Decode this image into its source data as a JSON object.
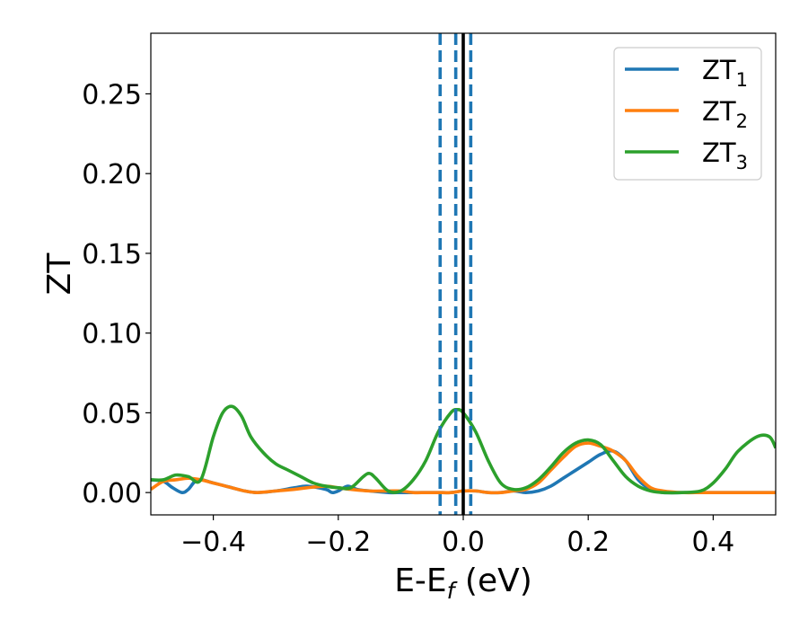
{
  "chart_data": {
    "type": "line",
    "xlabel": {
      "base": "E-E",
      "sub": "f",
      "suffix": " (eV)"
    },
    "ylabel": "ZT",
    "xlim": [
      -0.5,
      0.5
    ],
    "ylim": [
      -0.014,
      0.288
    ],
    "x_ticks": [
      -0.4,
      -0.2,
      0.0,
      0.2,
      0.4
    ],
    "x_tick_labels": [
      "−0.4",
      "−0.2",
      "0.0",
      "0.2",
      "0.4"
    ],
    "y_ticks": [
      0.0,
      0.05,
      0.1,
      0.15,
      0.2,
      0.25
    ],
    "y_tick_labels": [
      "0.00",
      "0.05",
      "0.10",
      "0.15",
      "0.20",
      "0.25"
    ],
    "grid": false,
    "legend_position": "top-right",
    "series": [
      {
        "name": "ZT",
        "sub": "1",
        "color": "#1f77b4",
        "x": [
          -0.5,
          -0.48,
          -0.465,
          -0.45,
          -0.44,
          -0.425,
          -0.4,
          -0.37,
          -0.35,
          -0.33,
          -0.3,
          -0.27,
          -0.25,
          -0.22,
          -0.21,
          -0.2,
          -0.185,
          -0.17,
          -0.15,
          -0.12,
          -0.1,
          -0.08,
          -0.06,
          -0.04,
          -0.02,
          0.0,
          0.02,
          0.04,
          0.06,
          0.08,
          0.1,
          0.12,
          0.14,
          0.16,
          0.18,
          0.2,
          0.22,
          0.24,
          0.26,
          0.28,
          0.3,
          0.32,
          0.35,
          0.38,
          0.4,
          0.42,
          0.44,
          0.47,
          0.5
        ],
        "y": [
          0.008,
          0.007,
          0.003,
          0.0,
          0.002,
          0.008,
          0.006,
          0.003,
          0.001,
          0.0,
          0.001,
          0.003,
          0.004,
          0.002,
          0.0,
          0.001,
          0.004,
          0.002,
          0.001,
          0.0,
          0.0,
          0.0,
          0.0,
          0.0,
          0.0,
          0.001,
          0.001,
          0.0,
          0.0,
          0.001,
          0.0,
          0.001,
          0.004,
          0.009,
          0.014,
          0.019,
          0.024,
          0.026,
          0.02,
          0.008,
          0.002,
          0.0,
          0.0,
          0.0,
          0.0,
          0.0,
          0.0,
          0.0,
          0.0
        ]
      },
      {
        "name": "ZT",
        "sub": "2",
        "color": "#ff7f0e",
        "x": [
          -0.5,
          -0.48,
          -0.46,
          -0.44,
          -0.42,
          -0.4,
          -0.37,
          -0.35,
          -0.33,
          -0.3,
          -0.27,
          -0.25,
          -0.22,
          -0.2,
          -0.18,
          -0.15,
          -0.12,
          -0.1,
          -0.08,
          -0.06,
          -0.04,
          -0.02,
          0.0,
          0.02,
          0.04,
          0.06,
          0.08,
          0.1,
          0.12,
          0.14,
          0.16,
          0.18,
          0.2,
          0.22,
          0.24,
          0.26,
          0.28,
          0.3,
          0.32,
          0.35,
          0.38,
          0.4,
          0.42,
          0.44,
          0.47,
          0.5
        ],
        "y": [
          0.002,
          0.007,
          0.008,
          0.009,
          0.008,
          0.006,
          0.003,
          0.001,
          0.0,
          0.001,
          0.002,
          0.003,
          0.004,
          0.003,
          0.002,
          0.001,
          0.001,
          0.001,
          0.0,
          0.0,
          0.0,
          0.0,
          0.001,
          0.001,
          0.0,
          0.0,
          0.001,
          0.002,
          0.006,
          0.014,
          0.022,
          0.029,
          0.031,
          0.029,
          0.026,
          0.02,
          0.01,
          0.003,
          0.001,
          0.0,
          0.0,
          0.0,
          0.0,
          0.0,
          0.0,
          0.0
        ]
      },
      {
        "name": "ZT",
        "sub": "3",
        "color": "#2ca02c",
        "x": [
          -0.5,
          -0.48,
          -0.46,
          -0.44,
          -0.42,
          -0.4,
          -0.385,
          -0.37,
          -0.355,
          -0.34,
          -0.32,
          -0.3,
          -0.28,
          -0.26,
          -0.24,
          -0.22,
          -0.2,
          -0.18,
          -0.16,
          -0.15,
          -0.14,
          -0.12,
          -0.1,
          -0.08,
          -0.06,
          -0.04,
          -0.02,
          -0.01,
          0.0,
          0.02,
          0.04,
          0.06,
          0.08,
          0.1,
          0.12,
          0.14,
          0.16,
          0.18,
          0.2,
          0.22,
          0.24,
          0.26,
          0.28,
          0.3,
          0.32,
          0.35,
          0.38,
          0.4,
          0.42,
          0.44,
          0.47,
          0.49,
          0.5
        ],
        "y": [
          0.008,
          0.008,
          0.011,
          0.01,
          0.008,
          0.035,
          0.05,
          0.054,
          0.048,
          0.035,
          0.025,
          0.018,
          0.014,
          0.01,
          0.006,
          0.004,
          0.003,
          0.003,
          0.01,
          0.012,
          0.009,
          0.001,
          0.001,
          0.008,
          0.02,
          0.038,
          0.05,
          0.052,
          0.05,
          0.038,
          0.02,
          0.006,
          0.002,
          0.003,
          0.008,
          0.016,
          0.025,
          0.031,
          0.033,
          0.03,
          0.02,
          0.01,
          0.004,
          0.001,
          0.0,
          0.0,
          0.001,
          0.006,
          0.015,
          0.026,
          0.035,
          0.035,
          0.028
        ]
      }
    ],
    "reference_lines": [
      {
        "x": 0.0,
        "style": "solid",
        "color": "#000000"
      },
      {
        "x": -0.037,
        "style": "dashed",
        "color": "#1f77b4"
      },
      {
        "x": -0.012,
        "style": "dashed",
        "color": "#1f77b4"
      },
      {
        "x": 0.012,
        "style": "dashed",
        "color": "#1f77b4"
      }
    ]
  }
}
